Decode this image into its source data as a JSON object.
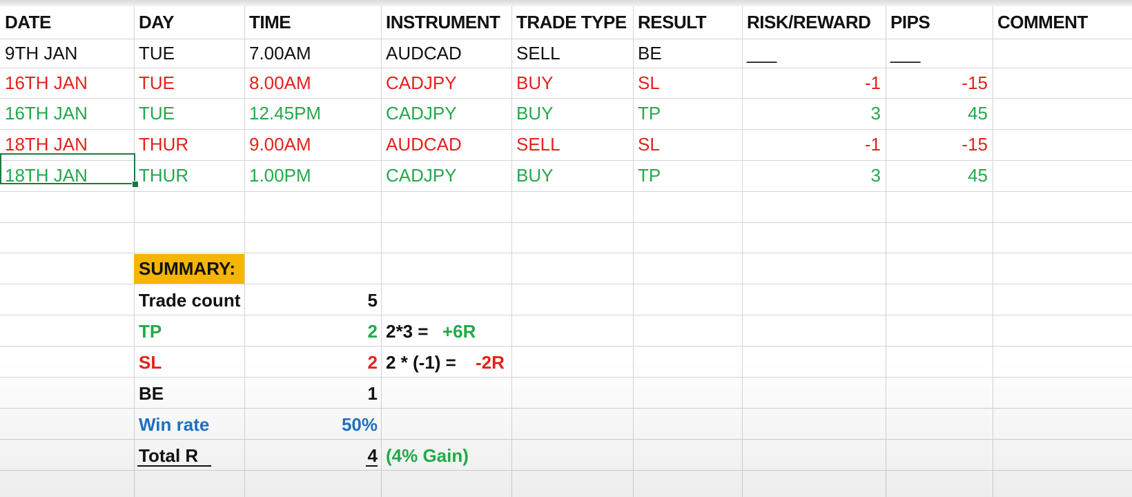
{
  "headers": [
    "DATE",
    "DAY",
    "TIME",
    "INSTRUMENT",
    "TRADE TYPE",
    "RESULT",
    "RISK/REWARD",
    "PIPS",
    "COMMENT"
  ],
  "rows": [
    {
      "date": "9TH JAN",
      "day": "TUE",
      "time": "7.00AM",
      "instrument": "AUDCAD",
      "type": "SELL",
      "result": "BE",
      "rr": "___",
      "pips": "___",
      "color": "#111111"
    },
    {
      "date": "16TH JAN",
      "day": "TUE",
      "time": "8.00AM",
      "instrument": "CADJPY",
      "type": "BUY",
      "result": "SL",
      "rr": "-1",
      "pips": "-15",
      "color": "#e3221b"
    },
    {
      "date": "16TH JAN",
      "day": "TUE",
      "time": "12.45PM",
      "instrument": "CADJPY",
      "type": "BUY",
      "result": "TP",
      "rr": "3",
      "pips": "45",
      "color": "#22a94a"
    },
    {
      "date": "18TH JAN",
      "day": "THUR",
      "time": "9.00AM",
      "instrument": "AUDCAD",
      "type": "SELL",
      "result": "SL",
      "rr": "-1",
      "pips": "-15",
      "color": "#e3221b"
    },
    {
      "date": "18TH JAN",
      "day": "THUR",
      "time": "1.00PM",
      "instrument": "CADJPY",
      "type": "BUY",
      "result": "TP",
      "rr": "3",
      "pips": "45",
      "color": "#22a94a"
    }
  ],
  "summary": {
    "title": "SUMMARY:",
    "trade_count_label": "Trade count",
    "trade_count_value": "5",
    "tp_label": "TP",
    "tp_value": "2",
    "tp_calc": "2*3 =",
    "tp_result": "+6R",
    "sl_label": "SL",
    "sl_value": "2",
    "sl_calc": "2 * (-1) =",
    "sl_result": "-2R",
    "be_label": "BE",
    "be_value": "1",
    "winrate_label": "Win rate",
    "winrate_value": "50%",
    "total_label": "Total R",
    "total_value": "4",
    "total_note": "(4% Gain)"
  },
  "colors": {
    "summary_highlight": "#f5b500",
    "loss": "#e3221b",
    "win": "#22a94a",
    "winrate": "#1f6fbf",
    "selection": "#1b7a3e"
  }
}
